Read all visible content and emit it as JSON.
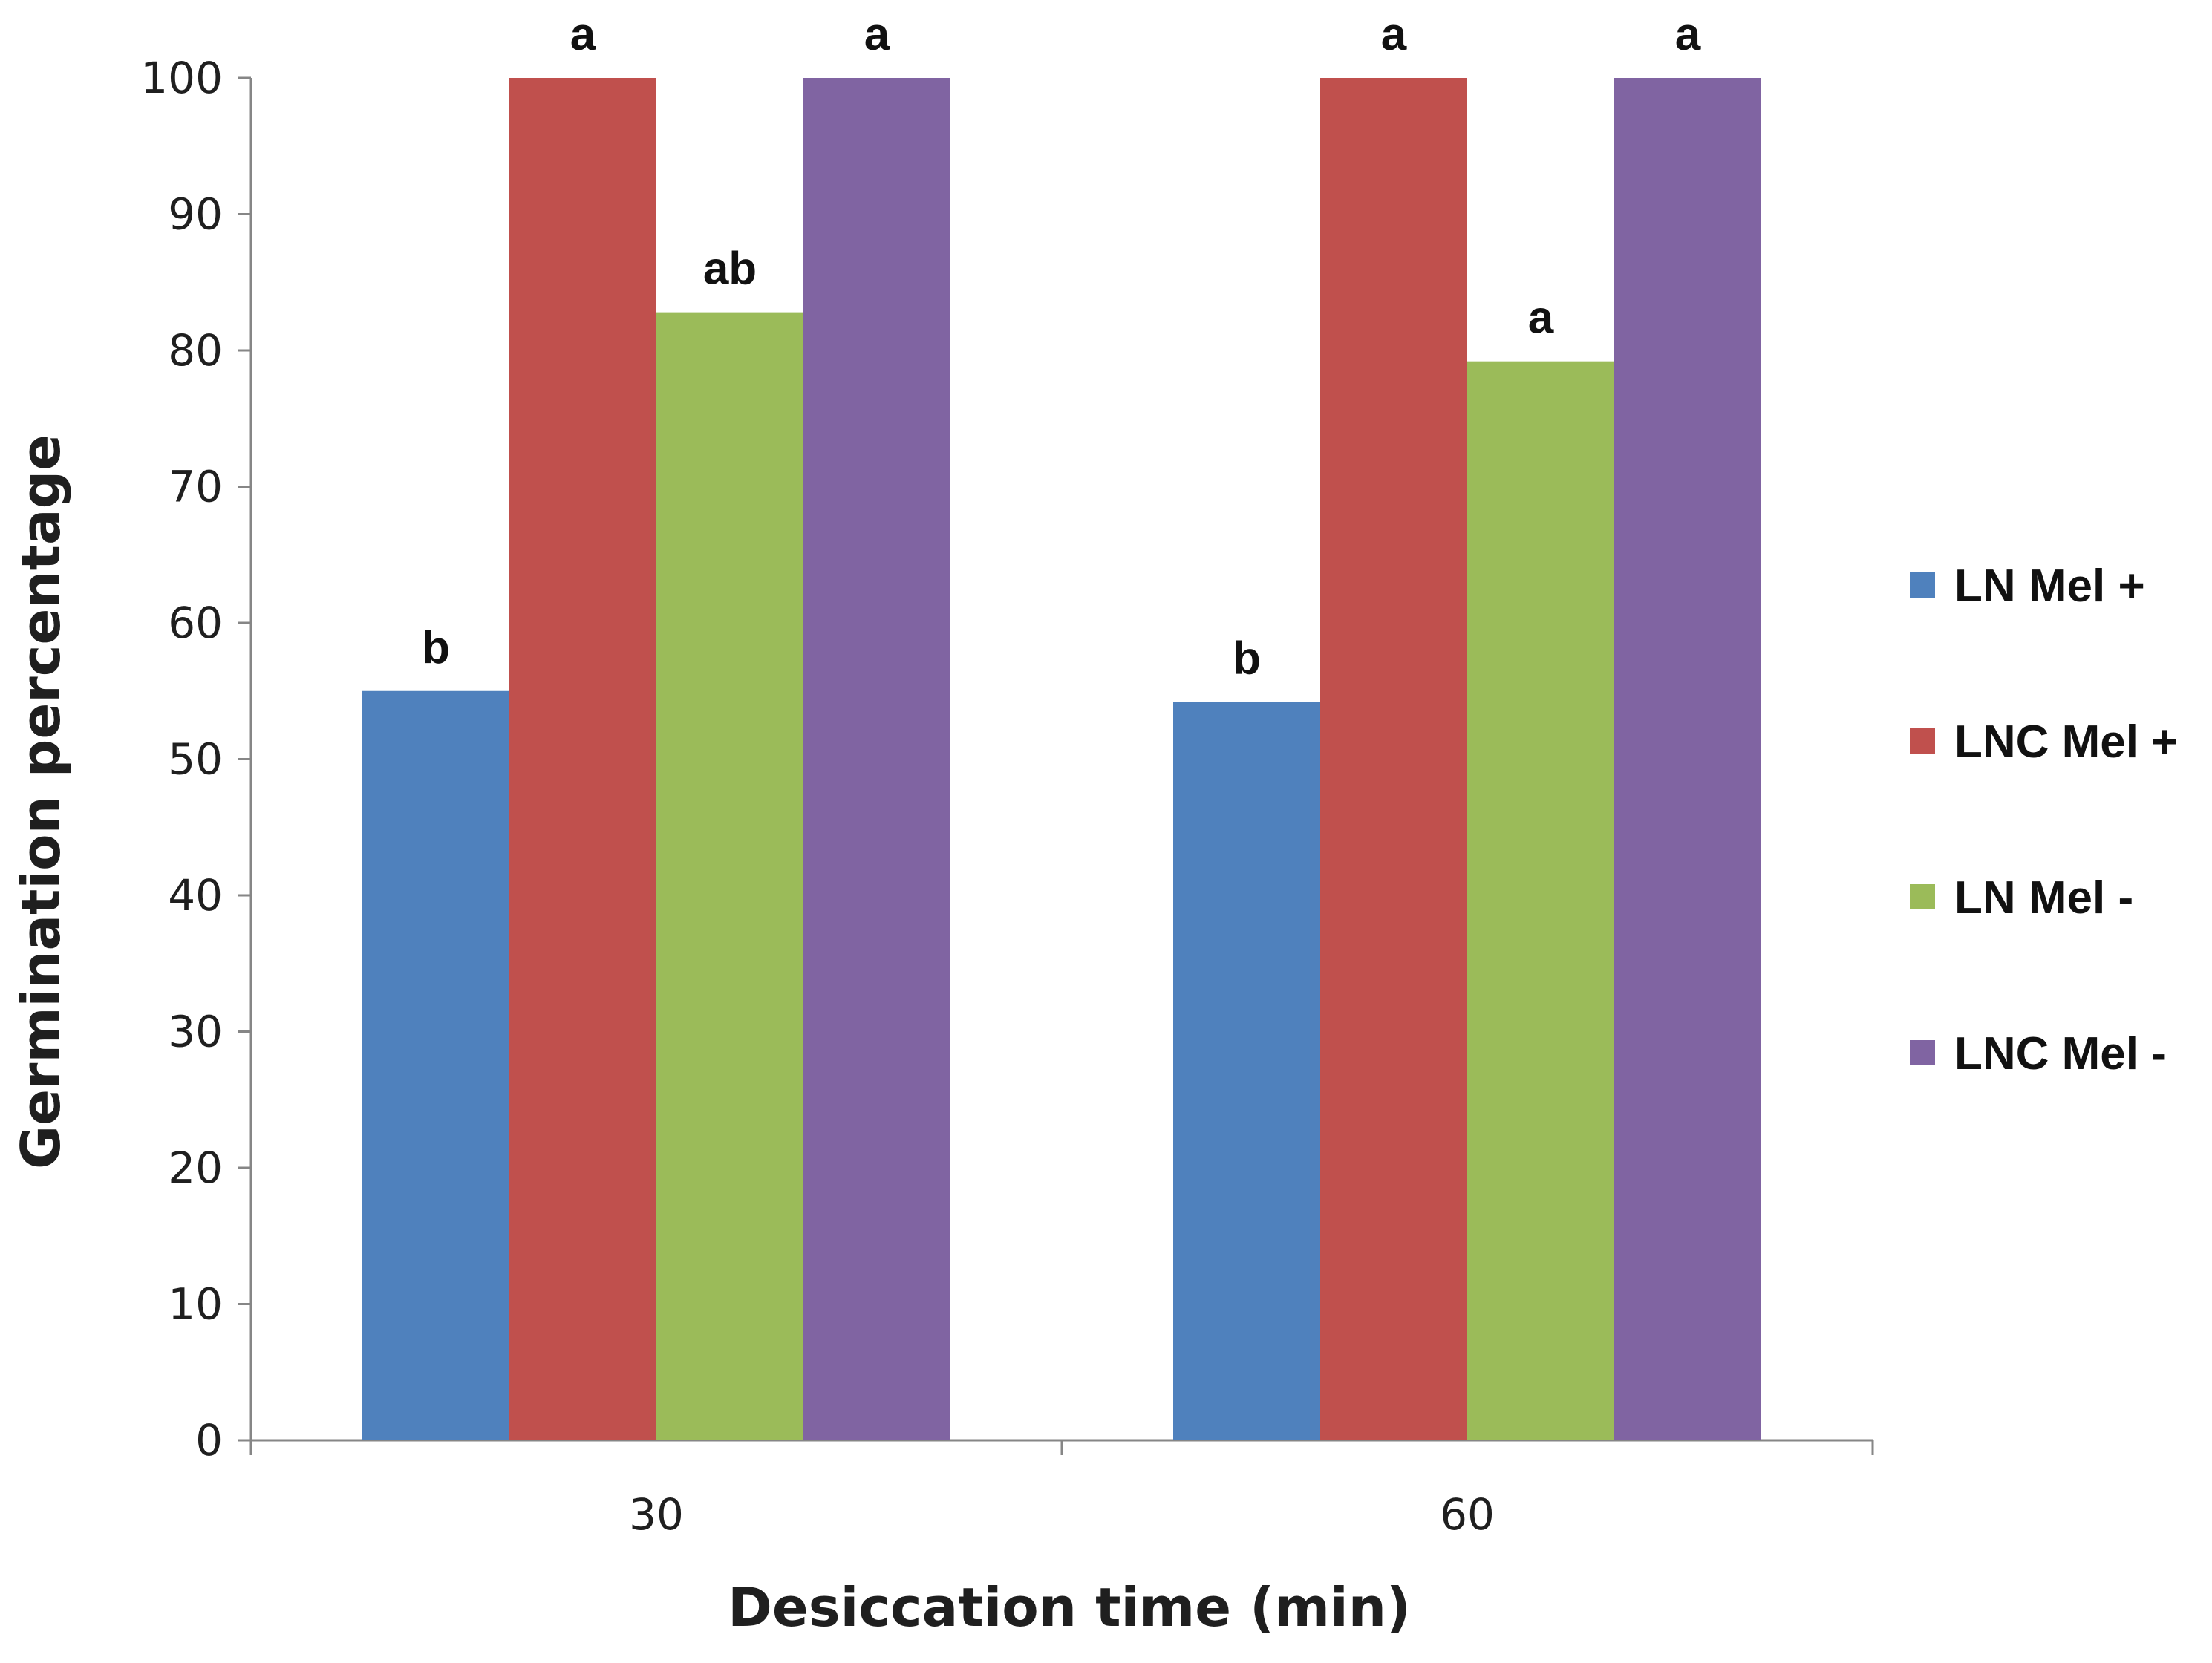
{
  "chart_data": {
    "type": "bar",
    "title": "",
    "xlabel": "Desiccation time (min)",
    "ylabel": "Germination percentage",
    "ylim": [
      0,
      100
    ],
    "yticks": [
      0,
      10,
      20,
      30,
      40,
      50,
      60,
      70,
      80,
      90,
      100
    ],
    "categories": [
      "30",
      "60"
    ],
    "series": [
      {
        "name": "LN Mel +",
        "color": "#4F81BD",
        "values": [
          55,
          54.2
        ],
        "labels": [
          "b",
          "b"
        ]
      },
      {
        "name": "LNC Mel +",
        "color": "#C0504D",
        "values": [
          100,
          100
        ],
        "labels": [
          "a",
          "a"
        ]
      },
      {
        "name": "LN Mel -",
        "color": "#9BBB59",
        "values": [
          82.8,
          79.2
        ],
        "labels": [
          "ab",
          "a"
        ]
      },
      {
        "name": "LNC Mel -",
        "color": "#8064A2",
        "values": [
          100,
          100
        ],
        "labels": [
          "a",
          "a"
        ]
      }
    ],
    "legend_position": "right",
    "grid": false
  }
}
